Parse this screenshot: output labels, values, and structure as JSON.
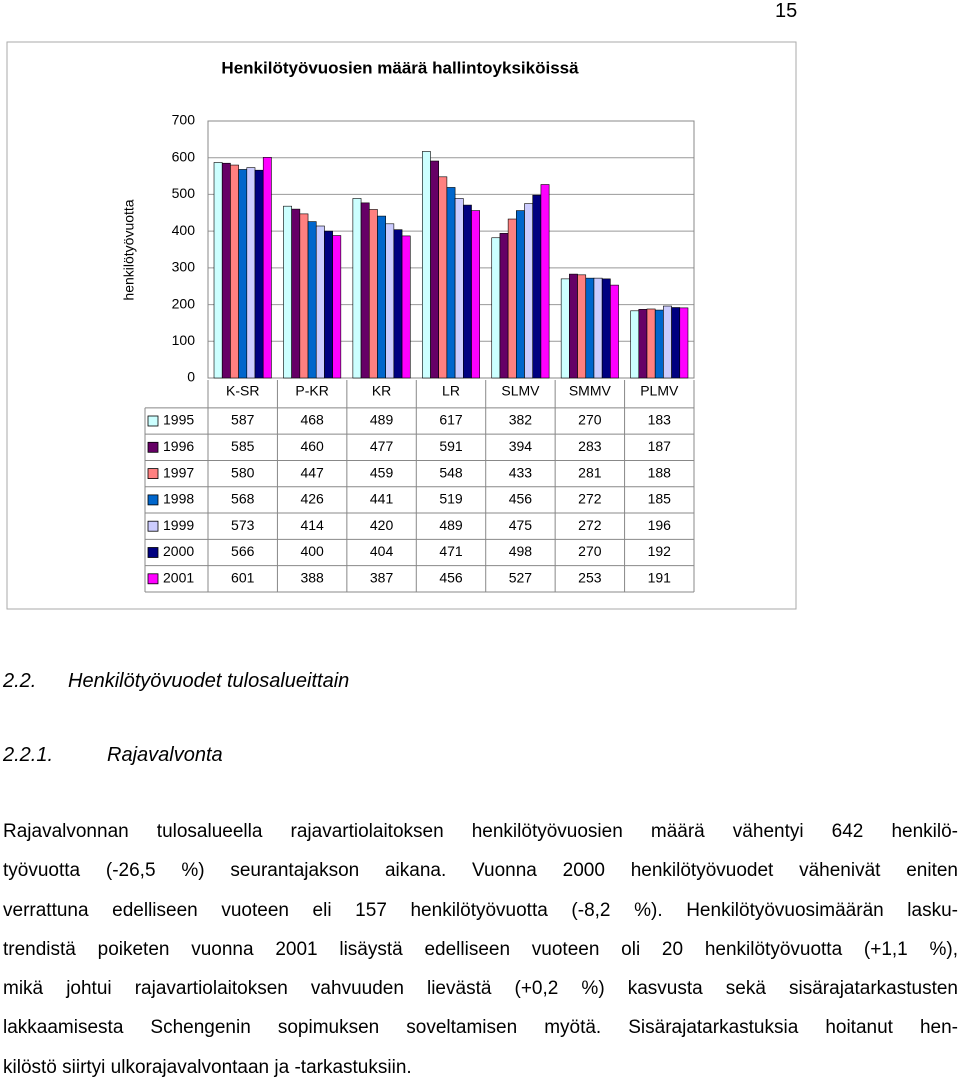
{
  "page_number": "15",
  "chart_data": {
    "type": "bar",
    "title": "Henkilötyövuosien määrä hallintoyksiköissä",
    "y_label": "henkilötyövuotta",
    "categories": [
      "K-SR",
      "P-KR",
      "KR",
      "LR",
      "SLMV",
      "SMMV",
      "PLMV"
    ],
    "series": [
      {
        "name": "1995",
        "color": "#ccffff",
        "values": [
          587,
          468,
          489,
          617,
          382,
          270,
          183
        ]
      },
      {
        "name": "1996",
        "color": "#660066",
        "values": [
          585,
          460,
          477,
          591,
          394,
          283,
          187
        ]
      },
      {
        "name": "1997",
        "color": "#ff8080",
        "values": [
          580,
          447,
          459,
          548,
          433,
          281,
          188
        ]
      },
      {
        "name": "1998",
        "color": "#0066cc",
        "values": [
          568,
          426,
          441,
          519,
          456,
          272,
          185
        ]
      },
      {
        "name": "1999",
        "color": "#ccccff",
        "values": [
          573,
          414,
          420,
          489,
          475,
          272,
          196
        ]
      },
      {
        "name": "2000",
        "color": "#000080",
        "values": [
          566,
          400,
          404,
          471,
          498,
          270,
          192
        ]
      },
      {
        "name": "2001",
        "color": "#ff00ff",
        "values": [
          601,
          388,
          387,
          456,
          527,
          253,
          191
        ]
      }
    ],
    "ylim": [
      0,
      700
    ],
    "yticks": [
      0,
      100,
      200,
      300,
      400,
      500,
      600,
      700
    ],
    "grid": true
  },
  "headings": [
    {
      "number": "2.2.",
      "title": "Henkilötyövuodet tulosalueittain"
    },
    {
      "number": "2.2.1.",
      "title": "Rajavalvonta"
    }
  ],
  "paragraph": [
    "Rajavalvonnan tulosalueella rajavartiolaitoksen henkilötyövuosien määrä vähentyi 642 henkilö-",
    "työvuotta (-26,5 %) seurantajakson aikana. Vuonna 2000 henkilötyövuodet vähenivät eniten",
    "verrattuna edelliseen vuoteen eli 157 henkilötyövuotta (-8,2 %). Henkilötyövuosimäärän lasku-",
    "trendistä poiketen vuonna 2001 lisäystä edelliseen vuoteen oli 20 henkilötyövuotta (+1,1 %),",
    "mikä johtui rajavartiolaitoksen vahvuuden lievästä (+0,2 %) kasvusta sekä sisärajatarkastusten",
    "lakkaamisesta Schengenin sopimuksen soveltamisen myötä. Sisärajatarkastuksia hoitanut hen-",
    "kilöstö siirtyi ulkorajavalvontaan ja -tarkastuksiin."
  ]
}
